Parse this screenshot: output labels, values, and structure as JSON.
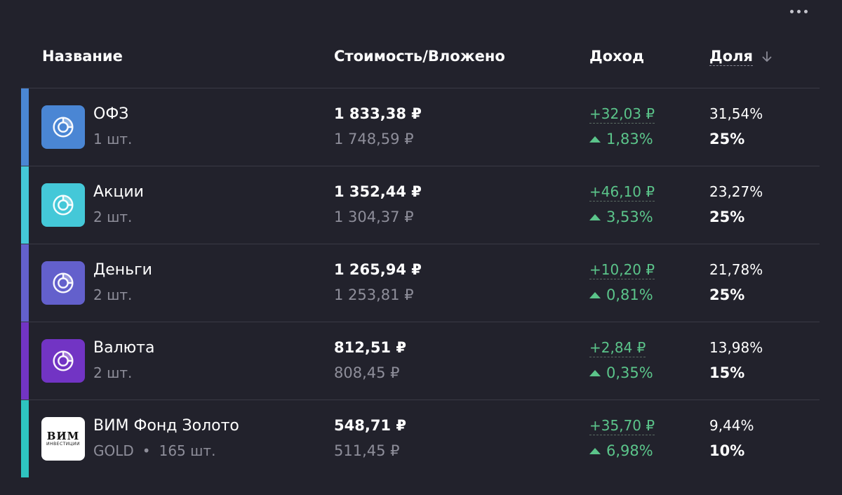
{
  "header": {
    "name": "Название",
    "value": "Стоимость/Вложено",
    "income": "Доход",
    "share": "Доля"
  },
  "icons": {
    "menu": "more-horizontal-icon",
    "sort": "arrow-down-icon",
    "trend": "triangle-up-icon",
    "asset": "donut-chart-icon"
  },
  "colors": {
    "background": "#22222c",
    "positive": "#5bc48a"
  },
  "rows": [
    {
      "name": "ОФЗ",
      "sub": "1 шт.",
      "ticker": "",
      "value": "1 833,38 ₽",
      "invested": "1 748,59 ₽",
      "income": "+32,03 ₽",
      "income_pct": "1,83%",
      "share": "31,54%",
      "target": "25%",
      "color": "#4a86d4"
    },
    {
      "name": "Акции",
      "sub": "2 шт.",
      "ticker": "",
      "value": "1 352,44 ₽",
      "invested": "1 304,37 ₽",
      "income": "+46,10 ₽",
      "income_pct": "3,53%",
      "share": "23,27%",
      "target": "25%",
      "color": "#44c8d8"
    },
    {
      "name": "Деньги",
      "sub": "2 шт.",
      "ticker": "",
      "value": "1 265,94 ₽",
      "invested": "1 253,81 ₽",
      "income": "+10,20 ₽",
      "income_pct": "0,81%",
      "share": "21,78%",
      "target": "25%",
      "color": "#6360cc"
    },
    {
      "name": "Валюта",
      "sub": "2 шт.",
      "ticker": "",
      "value": "812,51 ₽",
      "invested": "808,45 ₽",
      "income": "+2,84 ₽",
      "income_pct": "0,35%",
      "share": "13,98%",
      "target": "15%",
      "color": "#7234c4"
    },
    {
      "name": "ВИМ Фонд Золото",
      "sub": "165 шт.",
      "ticker": "GOLD",
      "value": "548,71 ₽",
      "invested": "511,45 ₽",
      "income": "+35,70 ₽",
      "income_pct": "6,98%",
      "share": "9,44%",
      "target": "10%",
      "color": "#2ec4c0",
      "logo_text": "ВИМ",
      "logo_subtext": "ИНВЕСТИЦИИ"
    }
  ]
}
